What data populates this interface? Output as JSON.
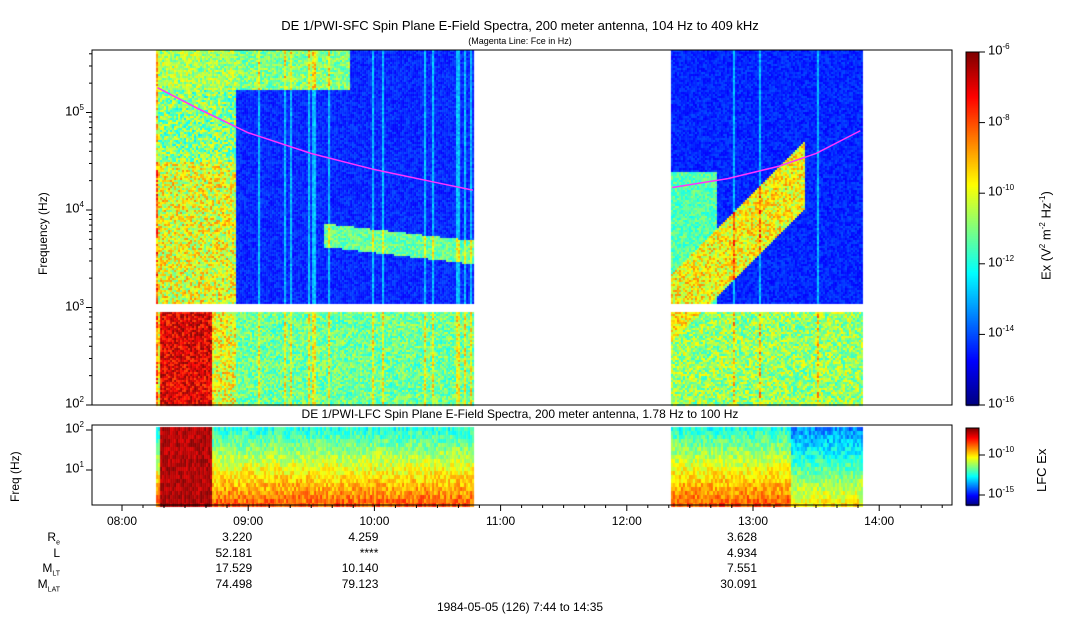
{
  "chart_data": [
    {
      "type": "heatmap",
      "title": "DE 1/PWI-SFC  Spin Plane E-Field Spectra, 200 meter antenna, 104 Hz to 409 kHz",
      "subtitle": "(Magenta Line: Fce in Hz)",
      "ylabel": "Frequency (Hz)",
      "yscale": "log",
      "ylim": [
        100,
        409000
      ],
      "yticks": [
        {
          "v": 100,
          "e": "2"
        },
        {
          "v": 1000,
          "e": "3"
        },
        {
          "v": 10000,
          "e": "4"
        },
        {
          "v": 100000,
          "e": "5"
        }
      ],
      "colorbar": {
        "label_main": "Ex (V",
        "label_sup1": "2",
        "label_mid": " m",
        "label_sup2": "-2",
        "label_hz": " Hz",
        "label_sup3": "-1",
        "label_end": ")",
        "range": [
          1e-16,
          1e-06
        ],
        "ticks": [
          {
            "e": "-6"
          },
          {
            "e": "-8"
          },
          {
            "e": "-10"
          },
          {
            "e": "-12"
          },
          {
            "e": "-14"
          },
          {
            "e": "-16"
          }
        ]
      },
      "data_segments_hours": [
        [
          8.27,
          10.78
        ],
        [
          12.35,
          13.87
        ]
      ],
      "fce_line": {
        "color": "#ff33ff",
        "segments": [
          [
            [
              8.28,
              180000
            ],
            [
              8.6,
              110000
            ],
            [
              9.0,
              62000
            ],
            [
              9.5,
              38000
            ],
            [
              10.0,
              26000
            ],
            [
              10.5,
              19000
            ],
            [
              10.78,
              16000
            ]
          ],
          [
            [
              12.36,
              17000
            ],
            [
              12.8,
              21000
            ],
            [
              13.2,
              28000
            ],
            [
              13.5,
              38000
            ],
            [
              13.85,
              65000
            ]
          ]
        ]
      }
    },
    {
      "type": "heatmap",
      "title": "DE 1/PWI-LFC  Spin Plane E-Field Spectra, 200 meter antenna, 1.78 Hz to 100 Hz",
      "ylabel": "Freq (Hz)",
      "yscale": "log",
      "ylim": [
        1.78,
        100
      ],
      "yticks": [
        {
          "v": 100,
          "e": "2"
        },
        {
          "v": 10,
          "e": "1"
        }
      ],
      "colorbar": {
        "label": "LFC Ex",
        "ticks": [
          {
            "e": "-10"
          },
          {
            "e": "-15"
          }
        ]
      },
      "data_segments_hours": [
        [
          8.27,
          10.78
        ],
        [
          12.35,
          13.87
        ]
      ]
    }
  ],
  "xaxis": {
    "ticks": [
      "08:00",
      "09:00",
      "10:00",
      "11:00",
      "12:00",
      "13:00",
      "14:00"
    ],
    "range_hours": [
      7.733,
      14.583
    ]
  },
  "ephemeris": {
    "rows": [
      {
        "label": "R",
        "sub": "e",
        "values": [
          "3.220",
          "4.259",
          "",
          "",
          "3.628"
        ]
      },
      {
        "label": "L",
        "sub": "",
        "values": [
          "52.181",
          "****",
          "",
          "",
          "4.934"
        ]
      },
      {
        "label": "M",
        "sub": "LT",
        "values": [
          "17.529",
          "10.140",
          "",
          "",
          "7.551"
        ]
      },
      {
        "label": "M",
        "sub": "LAT",
        "values": [
          "74.498",
          "79.123",
          "",
          "",
          "30.091"
        ]
      }
    ],
    "columns": [
      "09:00",
      "10:00",
      "11:00",
      "12:00",
      "13:00"
    ]
  },
  "footer": "1984-05-05 (126) 7:44 to 14:35"
}
